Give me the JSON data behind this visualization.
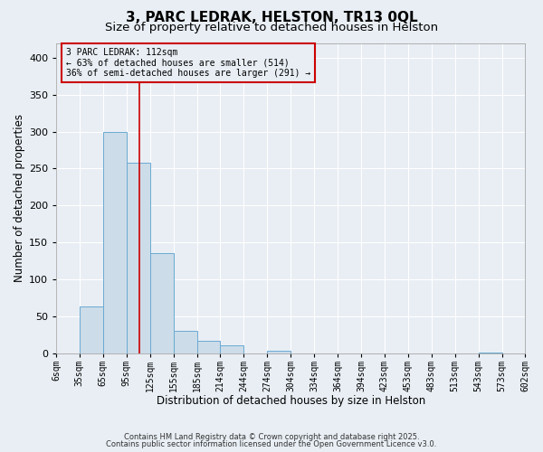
{
  "title": "3, PARC LEDRAK, HELSTON, TR13 0QL",
  "subtitle": "Size of property relative to detached houses in Helston",
  "xlabel": "Distribution of detached houses by size in Helston",
  "ylabel": "Number of detached properties",
  "bin_edges": [
    6,
    35,
    65,
    95,
    125,
    155,
    185,
    214,
    244,
    274,
    304,
    334,
    364,
    394,
    423,
    453,
    483,
    513,
    543,
    573,
    602
  ],
  "bar_heights": [
    0,
    63,
    300,
    258,
    135,
    30,
    17,
    10,
    0,
    3,
    0,
    0,
    0,
    0,
    0,
    0,
    0,
    0,
    1,
    0
  ],
  "bar_color": "#ccdce8",
  "bar_edge_color": "#6aaad4",
  "ylim": [
    0,
    420
  ],
  "yticks": [
    0,
    50,
    100,
    150,
    200,
    250,
    300,
    350,
    400
  ],
  "property_size": 112,
  "vline_color": "#cc0000",
  "annotation_line1": "3 PARC LEDRAK: 112sqm",
  "annotation_line2": "← 63% of detached houses are smaller (514)",
  "annotation_line3": "36% of semi-detached houses are larger (291) →",
  "annotation_box_color": "#cc0000",
  "footer1": "Contains HM Land Registry data © Crown copyright and database right 2025.",
  "footer2": "Contains public sector information licensed under the Open Government Licence v3.0.",
  "background_color": "#e8eef4",
  "grid_color": "#ffffff",
  "title_fontsize": 11,
  "subtitle_fontsize": 9.5,
  "axis_label_fontsize": 8.5,
  "tick_label_fontsize": 7,
  "ytick_fontsize": 8
}
